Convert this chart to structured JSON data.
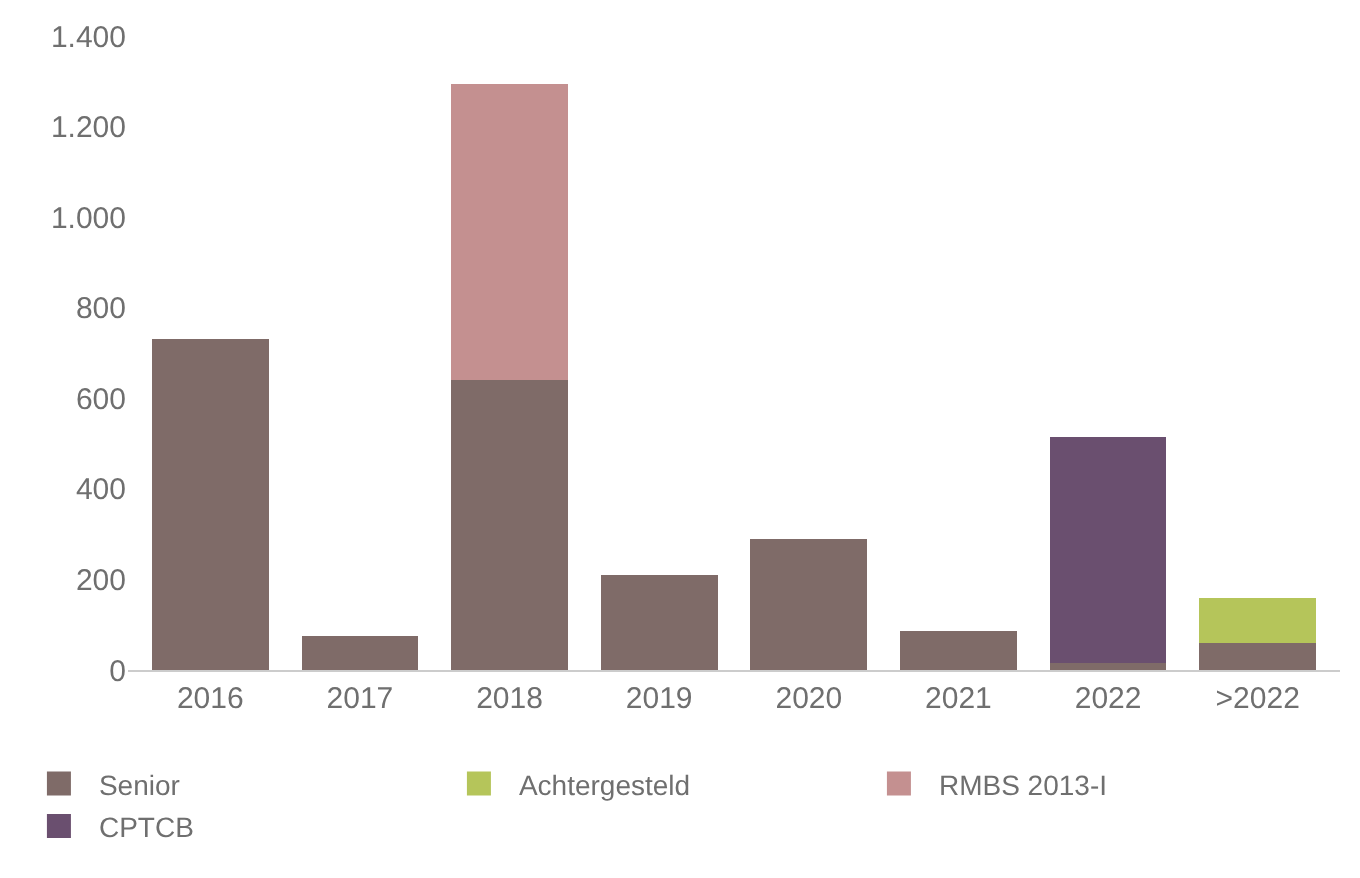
{
  "chart_data": {
    "type": "bar",
    "stacked": true,
    "categories": [
      "2016",
      "2017",
      "2018",
      "2019",
      "2020",
      "2021",
      "2022",
      ">2022"
    ],
    "series": [
      {
        "name": "Senior",
        "color": "#7f6b68",
        "values": [
          730,
          75,
          640,
          210,
          290,
          87,
          15,
          60
        ]
      },
      {
        "name": "Achtergesteld",
        "color": "#b5c55a",
        "values": [
          null,
          null,
          null,
          null,
          null,
          null,
          null,
          100
        ]
      },
      {
        "name": "RMBS 2013-I",
        "color": "#c49090",
        "values": [
          null,
          null,
          655,
          null,
          null,
          null,
          null,
          null
        ]
      },
      {
        "name": "CPTCB",
        "color": "#6a4f6f",
        "values": [
          null,
          null,
          null,
          null,
          null,
          null,
          500,
          null
        ]
      }
    ],
    "ylim": [
      0,
      1400
    ],
    "yticks": [
      0,
      200,
      400,
      600,
      800,
      {
        "value": 1000,
        "label": "1.000"
      },
      {
        "value": 1200,
        "label": "1.200"
      },
      {
        "value": 1400,
        "label": "1.400"
      }
    ],
    "legend": "bottom"
  }
}
